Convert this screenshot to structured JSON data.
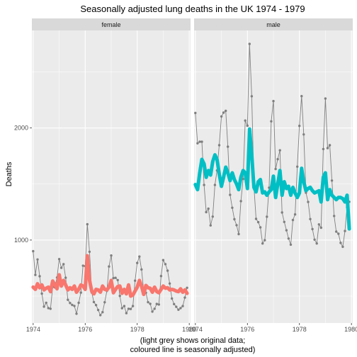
{
  "chart_data": {
    "type": "line",
    "title": "Seasonally adjusted lung deaths in the UK 1974 - 1979",
    "ylabel": "Deaths",
    "xlabel_lines": [
      "(light grey shows original data;",
      "coloured line is seasonally adjusted)"
    ],
    "xlim": [
      1973.95,
      1980.05
    ],
    "ylim": [
      260,
      2870
    ],
    "x_ticks": [
      1974,
      1976,
      1978,
      1980
    ],
    "y_ticks": [
      1000,
      2000
    ],
    "grid": true,
    "colors": {
      "panel_bg": "#ebebeb",
      "grid_major": "#ffffff",
      "strip_bg": "#d9d9d9",
      "original": "#7f7f7f",
      "female": "#f8766d",
      "male": "#00bfc4"
    },
    "panels": [
      {
        "strip": "female",
        "series": [
          {
            "kind": "original",
            "x_start": 1974.0,
            "step": 0.083333,
            "values": [
              901,
              689,
              827,
              677,
              522,
              406,
              441,
              393,
              387,
              582,
              578,
              666,
              830,
              752,
              785,
              664,
              467,
              438,
              421,
              412,
              343,
              440,
              531,
              771,
              767,
              1141,
              896,
              532,
              447,
              420,
              376,
              330,
              357,
              445,
              546,
              764,
              862,
              660,
              663,
              643,
              502,
              392,
              411,
              348,
              387,
              385,
              411,
              638,
              796,
              853,
              737,
              546,
              530,
              446,
              431,
              362,
              387,
              430,
              425,
              679,
              821,
              785,
              727,
              612,
              478,
              429,
              405,
              379,
              393,
              411,
              487,
              574
            ]
          },
          {
            "kind": "seasonally_adjusted",
            "x_start": 1974.0,
            "step": 0.083333,
            "values": [
              580,
              560,
              610,
              575,
              600,
              555,
              570,
              580,
              540,
              635,
              600,
              565,
              690,
              590,
              640,
              600,
              555,
              575,
              560,
              590,
              535,
              560,
              600,
              590,
              560,
              860,
              640,
              545,
              520,
              560,
              555,
              535,
              590,
              560,
              555,
              580,
              640,
              530,
              560,
              585,
              590,
              525,
              560,
              520,
              600,
              500,
              510,
              545,
              580,
              640,
              590,
              515,
              595,
              575,
              570,
              535,
              580,
              540,
              530,
              560,
              590,
              570,
              575,
              555,
              560,
              555,
              545,
              540,
              565,
              535,
              555,
              525
            ]
          }
        ]
      },
      {
        "strip": "male",
        "series": [
          {
            "kind": "original",
            "x_start": 1974.0,
            "step": 0.083333,
            "values": [
              2134,
              1863,
              1877,
              1877,
              1492,
              1249,
              1280,
              1131,
              1209,
              1492,
              1621,
              1846,
              2103,
              2137,
              2153,
              1833,
              1403,
              1288,
              1186,
              1133,
              1053,
              1347,
              1545,
              2066,
              2020,
              2750,
              2283,
              1479,
              1189,
              1160,
              1113,
              970,
              999,
              1208,
              1467,
              2059,
              2240,
              1634,
              1722,
              1801,
              1246,
              1162,
              1087,
              1013,
              959,
              1179,
              1229,
              1655,
              2019,
              2284,
              1942,
              1423,
              1340,
              1187,
              1098,
              1004,
              970,
              1140,
              1110,
              1812,
              2263,
              1820,
              1846,
              1531,
              1215,
              1075,
              1056,
              975,
              940,
              1081,
              1294,
              1341
            ]
          },
          {
            "kind": "seasonally_adjusted",
            "x_start": 1974.0,
            "step": 0.083333,
            "values": [
              1495,
              1450,
              1600,
              1720,
              1680,
              1560,
              1620,
              1580,
              1700,
              1760,
              1720,
              1590,
              1480,
              1560,
              1650,
              1600,
              1530,
              1600,
              1540,
              1500,
              1450,
              1560,
              1620,
              1600,
              1460,
              1990,
              1760,
              1470,
              1430,
              1520,
              1540,
              1420,
              1430,
              1400,
              1430,
              1450,
              1570,
              1380,
              1500,
              1620,
              1400,
              1520,
              1460,
              1480,
              1400,
              1470,
              1420,
              1380,
              1420,
              1640,
              1520,
              1440,
              1460,
              1470,
              1440,
              1420,
              1430,
              1440,
              1340,
              1560,
              1600,
              1360,
              1450,
              1400,
              1380,
              1360,
              1380,
              1380,
              1370,
              1340,
              1400,
              1100
            ]
          }
        ]
      }
    ]
  }
}
